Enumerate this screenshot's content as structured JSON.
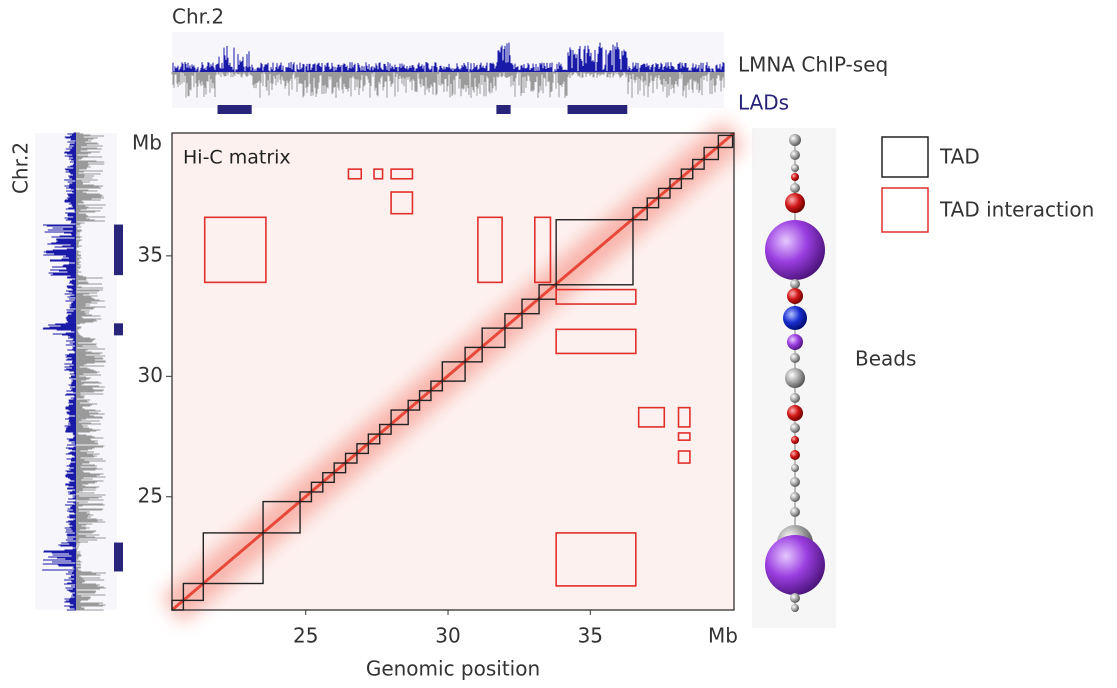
{
  "chart_data": {
    "type": "heatmap",
    "title": "Hi-C matrix",
    "xlabel": "Genomic position",
    "x_unit": "Mb",
    "y_unit": "Mb",
    "xlim": [
      20.3,
      40.05
    ],
    "ylim": [
      20.3,
      40.1
    ],
    "xticks": [
      25,
      30,
      35
    ],
    "yticks": [
      25,
      30,
      35
    ],
    "tad_color": "#222222",
    "tad_boundaries": [
      20.3,
      20.7,
      21.4,
      23.5,
      24.8,
      25.2,
      25.6,
      26.0,
      26.4,
      26.8,
      27.2,
      27.6,
      28.0,
      28.6,
      29.0,
      29.4,
      29.8,
      30.6,
      31.2,
      32.0,
      32.6,
      33.2,
      33.8,
      36.5,
      37.0,
      37.4,
      37.8,
      38.2,
      38.6,
      39.0,
      39.5,
      40.0
    ],
    "interaction_color": "#e0302c",
    "interactions": [
      [
        21.45,
        23.6,
        33.9,
        36.6
      ],
      [
        26.5,
        26.95,
        38.2,
        38.6
      ],
      [
        27.4,
        27.7,
        38.2,
        38.6
      ],
      [
        28.0,
        28.75,
        38.2,
        38.6
      ],
      [
        28.0,
        28.75,
        36.75,
        37.65
      ],
      [
        31.05,
        31.9,
        33.9,
        36.6
      ],
      [
        33.05,
        33.6,
        33.9,
        36.6
      ],
      [
        33.8,
        36.6,
        33.0,
        33.6
      ],
      [
        33.8,
        36.6,
        30.95,
        31.95
      ],
      [
        36.7,
        37.6,
        27.9,
        28.7
      ],
      [
        38.1,
        38.5,
        27.9,
        28.7
      ],
      [
        38.1,
        38.5,
        27.35,
        27.65
      ],
      [
        38.1,
        38.5,
        26.4,
        26.9
      ],
      [
        33.8,
        36.6,
        21.3,
        23.5
      ]
    ],
    "tracks": {
      "chromosome": "Chr.2",
      "chip_label": "LMNA ChIP-seq",
      "lad_label": "LADs",
      "lad_color": "#27247a",
      "lads": [
        [
          21.9,
          23.1
        ],
        [
          31.7,
          32.2
        ],
        [
          34.2,
          36.3
        ]
      ]
    },
    "legend": {
      "tad": "TAD",
      "interaction": "TAD interaction",
      "beads": "Beads"
    }
  }
}
